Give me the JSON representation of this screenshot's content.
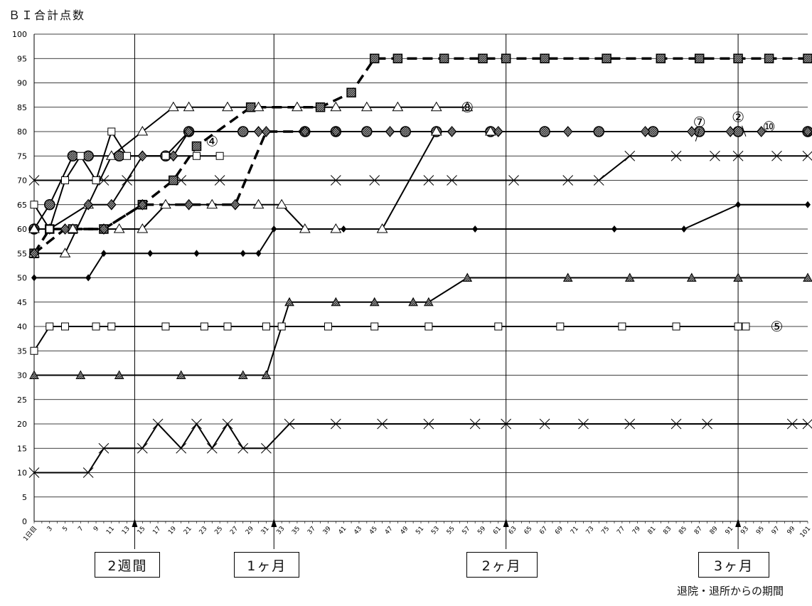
{
  "chart_data": {
    "type": "line",
    "ylabel": "ＢＩ合計点数",
    "xlabel": "退院・退所からの期間",
    "ylim": [
      0,
      100
    ],
    "yticks": [
      0,
      5,
      10,
      15,
      20,
      25,
      30,
      35,
      40,
      45,
      50,
      55,
      60,
      65,
      70,
      75,
      80,
      85,
      90,
      95,
      100
    ],
    "xlim": [
      1,
      101
    ],
    "xtick_labels": [
      "1日目",
      "3",
      "5",
      "7",
      "9",
      "11",
      "13",
      "15",
      "17",
      "19",
      "21",
      "23",
      "25",
      "27",
      "29",
      "31",
      "33",
      "35",
      "37",
      "39",
      "41",
      "43",
      "45",
      "47",
      "49",
      "51",
      "53",
      "55",
      "57",
      "59",
      "61",
      "63",
      "65",
      "67",
      "69",
      "71",
      "73",
      "75",
      "77",
      "79",
      "81",
      "83",
      "85",
      "87",
      "89",
      "91",
      "93",
      "95",
      "97",
      "99",
      "101"
    ],
    "grid": "horizontal",
    "milestones": [
      {
        "day": 14,
        "label": "2週間"
      },
      {
        "day": 32,
        "label": "1ヶ月"
      },
      {
        "day": 62,
        "label": "2ヶ月"
      },
      {
        "day": 92,
        "label": "3ヶ月"
      }
    ],
    "annotations": [
      {
        "text": "⑧",
        "x": 57,
        "y": 85
      },
      {
        "text": "⑦",
        "x": 87,
        "y": 82
      },
      {
        "text": "②",
        "x": 92,
        "y": 83
      },
      {
        "text": "⑩",
        "x": 96,
        "y": 81
      },
      {
        "text": "④",
        "x": 24,
        "y": 78
      },
      {
        "text": "⑤",
        "x": 97,
        "y": 40
      }
    ],
    "series": [
      {
        "marker": "square-filled",
        "dash": true,
        "points": [
          [
            1,
            55
          ],
          [
            3,
            60
          ],
          [
            6,
            60
          ],
          [
            10,
            60
          ],
          [
            15,
            65
          ],
          [
            19,
            70
          ],
          [
            22,
            77
          ],
          [
            29,
            85
          ],
          [
            38,
            85
          ],
          [
            42,
            88
          ],
          [
            45,
            95
          ],
          [
            48,
            95
          ],
          [
            54,
            95
          ],
          [
            59,
            95
          ],
          [
            62,
            95
          ],
          [
            67,
            95
          ],
          [
            75,
            95
          ],
          [
            82,
            95
          ],
          [
            87,
            95
          ],
          [
            92,
            95
          ],
          [
            96,
            95
          ],
          [
            101,
            95
          ]
        ],
        "values": [
          55,
          60,
          60,
          60,
          65,
          70,
          77,
          85,
          85,
          88,
          95,
          95,
          95,
          95,
          95,
          95,
          95,
          95,
          95,
          95,
          95,
          95
        ]
      },
      {
        "marker": "triangle-open",
        "dash": false,
        "points": [
          [
            1,
            55
          ],
          [
            5,
            55
          ],
          [
            8,
            65
          ],
          [
            11,
            75
          ],
          [
            15,
            80
          ],
          [
            19,
            85
          ],
          [
            21,
            85
          ],
          [
            26,
            85
          ],
          [
            30,
            85
          ],
          [
            35,
            85
          ],
          [
            40,
            85
          ],
          [
            44,
            85
          ],
          [
            48,
            85
          ],
          [
            53,
            85
          ],
          [
            57,
            85
          ]
        ],
        "values": [
          55,
          55,
          65,
          75,
          80,
          85,
          85,
          85,
          85,
          85,
          85,
          85,
          85,
          85,
          85
        ]
      },
      {
        "marker": "circle-filled",
        "dash": false,
        "points": [
          [
            1,
            60
          ],
          [
            3,
            65
          ],
          [
            6,
            75
          ],
          [
            8,
            75
          ],
          [
            12,
            75
          ],
          [
            18,
            75
          ],
          [
            21,
            80
          ],
          [
            28,
            80
          ],
          [
            36,
            80
          ],
          [
            40,
            80
          ],
          [
            44,
            80
          ],
          [
            49,
            80
          ],
          [
            53,
            80
          ],
          [
            60,
            80
          ],
          [
            67,
            80
          ],
          [
            74,
            80
          ],
          [
            81,
            80
          ],
          [
            87,
            80
          ],
          [
            92,
            80
          ],
          [
            101,
            80
          ]
        ],
        "values": [
          60,
          65,
          75,
          75,
          75,
          75,
          80,
          80,
          80,
          80,
          80,
          80,
          80,
          80,
          80,
          80,
          80,
          80,
          80,
          80
        ]
      },
      {
        "marker": "diamond-hatched",
        "dash": false,
        "points": [
          [
            1,
            60
          ],
          [
            3,
            60
          ],
          [
            8,
            65
          ],
          [
            11,
            65
          ],
          [
            15,
            75
          ],
          [
            19,
            75
          ],
          [
            21,
            80
          ],
          [
            30,
            80
          ],
          [
            40,
            80
          ],
          [
            47,
            80
          ],
          [
            55,
            80
          ],
          [
            61,
            80
          ],
          [
            70,
            80
          ],
          [
            80,
            80
          ],
          [
            86,
            80
          ],
          [
            91,
            80
          ],
          [
            95,
            80
          ],
          [
            101,
            80
          ]
        ],
        "values": [
          60,
          60,
          65,
          65,
          75,
          75,
          80,
          80,
          80,
          80,
          80,
          80,
          80,
          80,
          80,
          80,
          80,
          80
        ]
      },
      {
        "marker": "square-open",
        "dash": false,
        "points": [
          [
            1,
            65
          ],
          [
            3,
            60
          ],
          [
            5,
            70
          ],
          [
            7,
            75
          ],
          [
            9,
            70
          ],
          [
            11,
            80
          ],
          [
            13,
            75
          ],
          [
            18,
            75
          ],
          [
            22,
            75
          ],
          [
            25,
            75
          ]
        ],
        "values": [
          65,
          60,
          70,
          75,
          70,
          80,
          75,
          75,
          75,
          75
        ]
      },
      {
        "marker": "x",
        "dash": false,
        "points": [
          [
            1,
            70
          ],
          [
            10,
            70
          ],
          [
            13,
            70
          ],
          [
            20,
            70
          ],
          [
            25,
            70
          ],
          [
            40,
            70
          ],
          [
            45,
            70
          ],
          [
            52,
            70
          ],
          [
            55,
            70
          ],
          [
            63,
            70
          ],
          [
            70,
            70
          ],
          [
            74,
            70
          ],
          [
            78,
            75
          ],
          [
            84,
            75
          ],
          [
            89,
            75
          ],
          [
            92,
            75
          ],
          [
            97,
            75
          ],
          [
            101,
            75
          ]
        ],
        "values": [
          70,
          70,
          70,
          70,
          70,
          70,
          70,
          70,
          70,
          70,
          70,
          70,
          75,
          75,
          75,
          75,
          75,
          75
        ]
      },
      {
        "marker": "diamond-hatched",
        "dash": true,
        "points": [
          [
            1,
            55
          ],
          [
            5,
            60
          ],
          [
            10,
            60
          ],
          [
            15,
            65
          ],
          [
            21,
            65
          ],
          [
            27,
            65
          ],
          [
            31,
            80
          ],
          [
            36,
            80
          ]
        ],
        "values": [
          55,
          60,
          60,
          65,
          65,
          65,
          80,
          80
        ]
      },
      {
        "marker": "triangle-open",
        "dash": false,
        "points": [
          [
            1,
            60
          ],
          [
            6,
            60
          ],
          [
            12,
            60
          ],
          [
            15,
            60
          ],
          [
            18,
            65
          ],
          [
            24,
            65
          ],
          [
            30,
            65
          ],
          [
            33,
            65
          ],
          [
            36,
            60
          ],
          [
            40,
            60
          ],
          [
            46,
            60
          ],
          [
            53,
            80
          ],
          [
            60,
            80
          ]
        ],
        "values": [
          60,
          60,
          60,
          60,
          65,
          65,
          65,
          65,
          60,
          60,
          60,
          80,
          80
        ]
      },
      {
        "marker": "diamond-filled",
        "dash": false,
        "points": [
          [
            1,
            50
          ],
          [
            8,
            50
          ],
          [
            10,
            55
          ],
          [
            16,
            55
          ],
          [
            22,
            55
          ],
          [
            28,
            55
          ],
          [
            30,
            55
          ],
          [
            32,
            60
          ],
          [
            41,
            60
          ],
          [
            58,
            60
          ],
          [
            76,
            60
          ],
          [
            85,
            60
          ],
          [
            92,
            65
          ],
          [
            101,
            65
          ]
        ],
        "values": [
          50,
          50,
          55,
          55,
          55,
          55,
          55,
          60,
          60,
          60,
          60,
          60,
          65,
          65
        ]
      },
      {
        "marker": "triangle-hatched",
        "dash": false,
        "points": [
          [
            1,
            30
          ],
          [
            7,
            30
          ],
          [
            12,
            30
          ],
          [
            20,
            30
          ],
          [
            28,
            30
          ],
          [
            31,
            30
          ],
          [
            34,
            45
          ],
          [
            40,
            45
          ],
          [
            45,
            45
          ],
          [
            50,
            45
          ],
          [
            52,
            45
          ],
          [
            57,
            50
          ],
          [
            70,
            50
          ],
          [
            78,
            50
          ],
          [
            86,
            50
          ],
          [
            92,
            50
          ],
          [
            101,
            50
          ]
        ],
        "values": [
          30,
          30,
          30,
          30,
          30,
          30,
          45,
          45,
          45,
          45,
          45,
          45,
          50,
          50,
          50,
          50,
          50
        ]
      },
      {
        "marker": "square-open",
        "dash": false,
        "points": [
          [
            1,
            35
          ],
          [
            3,
            40
          ],
          [
            5,
            40
          ],
          [
            9,
            40
          ],
          [
            11,
            40
          ],
          [
            18,
            40
          ],
          [
            23,
            40
          ],
          [
            26,
            40
          ],
          [
            31,
            40
          ],
          [
            33,
            40
          ],
          [
            39,
            40
          ],
          [
            45,
            40
          ],
          [
            52,
            40
          ],
          [
            61,
            40
          ],
          [
            69,
            40
          ],
          [
            77,
            40
          ],
          [
            84,
            40
          ],
          [
            92,
            40
          ],
          [
            93,
            40
          ]
        ],
        "values": [
          35,
          40,
          40,
          40,
          40,
          40,
          40,
          40,
          40,
          40,
          40,
          40,
          40,
          40,
          40,
          40,
          40,
          40,
          40
        ]
      },
      {
        "marker": "x",
        "dash": false,
        "points": [
          [
            1,
            10
          ],
          [
            8,
            10
          ],
          [
            10,
            15
          ],
          [
            15,
            15
          ],
          [
            17,
            20
          ],
          [
            20,
            15
          ],
          [
            22,
            20
          ],
          [
            24,
            15
          ],
          [
            26,
            20
          ],
          [
            28,
            15
          ],
          [
            31,
            15
          ],
          [
            34,
            20
          ],
          [
            40,
            20
          ],
          [
            46,
            20
          ],
          [
            52,
            20
          ],
          [
            58,
            20
          ],
          [
            62,
            20
          ],
          [
            67,
            20
          ],
          [
            72,
            20
          ],
          [
            78,
            20
          ],
          [
            84,
            20
          ],
          [
            88,
            20
          ],
          [
            99,
            20
          ],
          [
            101,
            20
          ]
        ],
        "values": [
          10,
          10,
          15,
          15,
          20,
          15,
          20,
          15,
          20,
          15,
          15,
          20,
          20,
          20,
          20,
          20,
          20,
          20,
          20,
          20,
          20,
          20,
          20,
          20
        ]
      }
    ]
  }
}
